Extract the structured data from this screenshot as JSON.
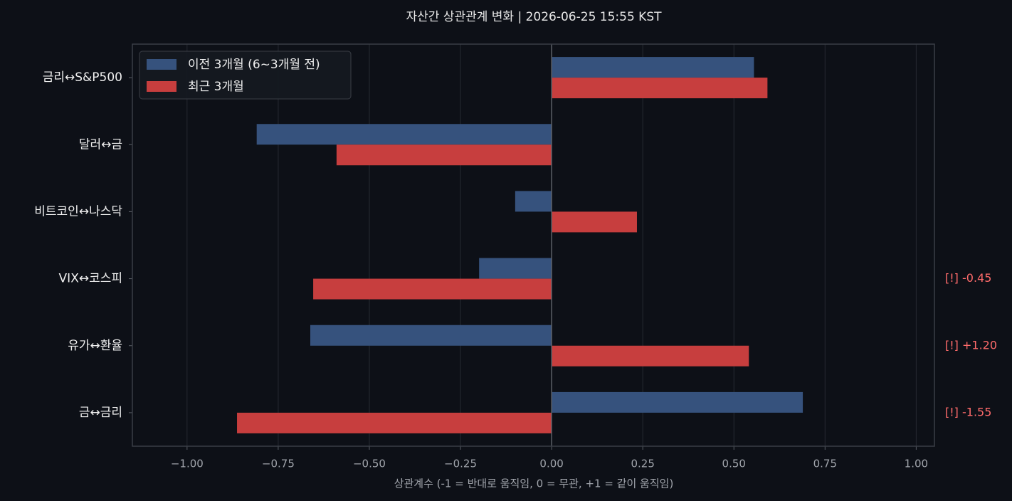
{
  "chart_data": {
    "type": "barh",
    "title": "자산간 상관관계 변화  |  2026-06-25 15:55 KST",
    "xlabel": "상관계수 (-1 = 반대로 움직임, 0 = 무관, +1 = 같이 움직임)",
    "categories": [
      "금리↔S&P500",
      "달러↔금",
      "비트코인↔나스닥",
      "VIX↔코스피",
      "유가↔환율",
      "금↔금리"
    ],
    "series": [
      {
        "name": "이전 3개월 (6~3개월 전)",
        "color": "#36527d",
        "values": [
          0.555,
          -0.809,
          -0.1,
          -0.199,
          -0.662,
          0.689
        ]
      },
      {
        "name": "최근 3개월",
        "color": "#c73e3e",
        "values": [
          0.592,
          -0.59,
          0.234,
          -0.654,
          0.541,
          -0.863
        ]
      }
    ],
    "annotations": [
      null,
      null,
      null,
      "[!] -0.45",
      "[!] +1.20",
      "[!] -1.55"
    ],
    "xlim": [
      -1.15,
      1.05
    ],
    "xticks": [
      {
        "value": -1,
        "label": "−1.00"
      },
      {
        "value": -0.75,
        "label": "−0.75"
      },
      {
        "value": -0.5,
        "label": "−0.50"
      },
      {
        "value": -0.25,
        "label": "−0.25"
      },
      {
        "value": 0,
        "label": "0.00"
      },
      {
        "value": 0.25,
        "label": "0.25"
      },
      {
        "value": 0.5,
        "label": "0.50"
      },
      {
        "value": 0.75,
        "label": "0.75"
      },
      {
        "value": 1,
        "label": "1.00"
      }
    ],
    "grid": true,
    "legend": "upper left"
  }
}
